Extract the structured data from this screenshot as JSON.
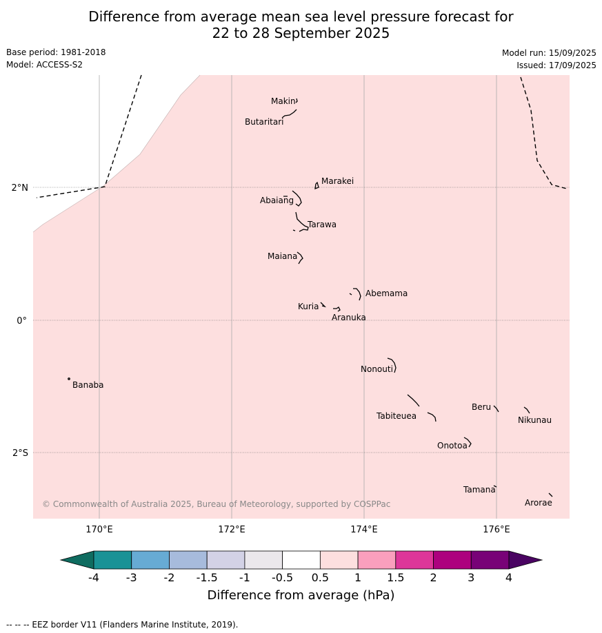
{
  "title_line1": "Difference from average mean sea level pressure forecast for",
  "title_line2": "22 to 28 September 2025",
  "base_period": "Base period: 1981-2018",
  "model": "Model: ACCESS-S2",
  "model_run": "Model run: 15/09/2025",
  "issued": "Issued: 17/09/2025",
  "copyright": "© Commonwealth of Australia 2025, Bureau of Meteorology, supported by COSPPac",
  "lon_labels": [
    "170°E",
    "172°E",
    "174°E",
    "176°E"
  ],
  "lat_labels": [
    "2°N",
    "0°",
    "2°S"
  ],
  "places": [
    "Makin",
    "Butaritari",
    "Marakei",
    "Abaiang",
    "Tarawa",
    "Maiana",
    "Abemama",
    "Kuria",
    "Aranuka",
    "Nonouti",
    "Banaba",
    "Beru",
    "Nikunau",
    "Tabiteuea",
    "Onotoa",
    "Tamana",
    "Arorae"
  ],
  "colorbar": {
    "title": "Difference from average (hPa)",
    "ticks": [
      "-4",
      "-3",
      "-2",
      "-1.5",
      "-1",
      "-0.5",
      "0.5",
      "1",
      "1.5",
      "2",
      "3",
      "4"
    ],
    "colors": [
      "#1a9296",
      "#67abd4",
      "#a7bbdc",
      "#d3d2e6",
      "#ebe8ec",
      "#ffffff",
      "#fddfdf",
      "#fa9fbd",
      "#dd3699",
      "#ad017e",
      "#780277"
    ],
    "under_color": "#0f6c60",
    "over_color": "#4a0462"
  },
  "field_color": "#fddfdf",
  "footnote": "--  --  -- EEZ border V11 (Flanders Marine Institute, 2019)."
}
